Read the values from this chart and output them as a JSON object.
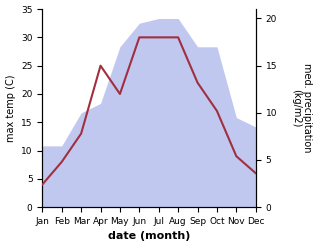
{
  "months": [
    "Jan",
    "Feb",
    "Mar",
    "Apr",
    "May",
    "Jun",
    "Jul",
    "Aug",
    "Sep",
    "Oct",
    "Nov",
    "Dec"
  ],
  "temp_line": [
    4,
    8,
    13,
    25,
    20,
    30,
    30,
    30,
    22,
    17,
    9,
    6
  ],
  "precip_fill": [
    6.5,
    6.5,
    10,
    11,
    17,
    19.5,
    20,
    20,
    17,
    17,
    9.5,
    8.5
  ],
  "temp_color": "#a03040",
  "fill_color": "#c0c8f0",
  "temp_ylim": [
    0,
    35
  ],
  "precip_ylim": [
    0,
    21
  ],
  "temp_yticks": [
    0,
    5,
    10,
    15,
    20,
    25,
    30,
    35
  ],
  "precip_yticks": [
    0,
    5,
    10,
    15,
    20
  ],
  "xlabel": "date (month)",
  "ylabel_left": "max temp (C)",
  "ylabel_right": "med. precipitation\n(kg/m2)",
  "title": ""
}
